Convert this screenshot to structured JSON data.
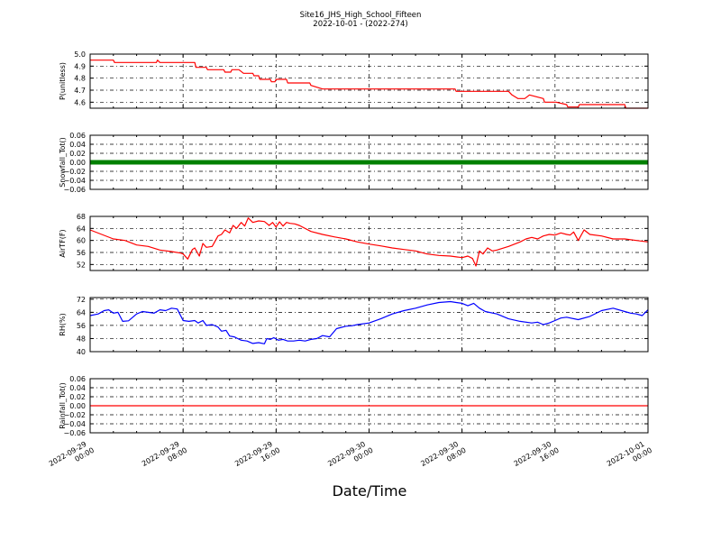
{
  "chart_data": {
    "type": "line",
    "title_line1": "Site16_JHS_High_School_Fifteen",
    "title_line2": "2022-10-01 - (2022-274)",
    "xlabel": "Date/Time",
    "x_ticks": [
      [
        "2022-09-29",
        "00:00"
      ],
      [
        "2022-09-29",
        "08:00"
      ],
      [
        "2022-09-29",
        "16:00"
      ],
      [
        "2022-09-30",
        "00:00"
      ],
      [
        "2022-09-30",
        "08:00"
      ],
      [
        "2022-09-30",
        "16:00"
      ],
      [
        "2022-10-01",
        "00:00"
      ]
    ],
    "x_range_hours": [
      0,
      48
    ],
    "grid": true,
    "panels": [
      {
        "ylabel": "P(unitless)",
        "ylim": [
          4.55,
          5.0
        ],
        "yticks": [
          "5.0",
          "4.9",
          "4.8",
          "4.7",
          "4.6"
        ],
        "ytick_values": [
          5.0,
          4.9,
          4.8,
          4.7,
          4.6
        ],
        "color": "#ff0000",
        "series": [
          {
            "x": [
              0,
              2.0,
              2.1,
              5.7,
              5.8,
              6.0,
              6.1,
              9.0,
              9.1,
              10.0,
              10.1,
              11.5,
              11.6,
              12.1,
              12.2,
              12.8,
              13.2,
              13.4,
              14.0,
              14.1,
              14.5,
              14.6,
              15.5,
              15.6,
              15.9,
              16.0,
              16.9,
              17.0,
              18.9,
              19.0,
              20.0,
              24.0,
              31.0,
              31.4,
              31.5,
              33.0,
              34.0,
              35.0,
              35.5,
              36.0,
              36.3,
              36.8,
              37.4,
              37.8,
              39.0,
              39.1,
              40.0,
              40.1,
              41.0,
              41.1,
              42.0,
              42.1,
              46.0,
              46.1,
              48.0
            ],
            "y": [
              4.95,
              4.95,
              4.93,
              4.93,
              4.95,
              4.93,
              4.93,
              4.93,
              4.89,
              4.89,
              4.87,
              4.87,
              4.85,
              4.85,
              4.87,
              4.87,
              4.84,
              4.84,
              4.84,
              4.82,
              4.82,
              4.79,
              4.79,
              4.77,
              4.77,
              4.79,
              4.79,
              4.76,
              4.76,
              4.74,
              4.71,
              4.71,
              4.71,
              4.71,
              4.69,
              4.69,
              4.69,
              4.69,
              4.69,
              4.69,
              4.66,
              4.63,
              4.63,
              4.66,
              4.63,
              4.6,
              4.6,
              4.6,
              4.58,
              4.56,
              4.56,
              4.58,
              4.58,
              4.55,
              4.55
            ]
          }
        ]
      },
      {
        "ylabel": "Snowfall_Tot()",
        "ylim": [
          -0.06,
          0.06
        ],
        "yticks": [
          "0.06",
          "0.04",
          "0.02",
          "0.00",
          "−0.02",
          "−0.04",
          "−0.06"
        ],
        "ytick_values": [
          0.06,
          0.04,
          0.02,
          0.0,
          -0.02,
          -0.04,
          -0.06
        ],
        "color": "#008000",
        "thick": true,
        "series": [
          {
            "x": [
              0,
              48
            ],
            "y": [
              0.0,
              0.0
            ]
          }
        ]
      },
      {
        "ylabel": "AirTF(F)",
        "ylim": [
          50,
          68
        ],
        "yticks": [
          "68",
          "64",
          "60",
          "56",
          "52"
        ],
        "ytick_values": [
          68,
          64,
          60,
          56,
          52
        ],
        "color": "#ff0000",
        "series": [
          {
            "x": [
              0,
              1,
              2,
              3,
              4,
              5,
              6,
              7,
              7.8,
              8.0,
              8.4,
              8.8,
              9.0,
              9.4,
              9.7,
              10.0,
              10.5,
              11.0,
              11.3,
              11.6,
              12.0,
              12.3,
              12.6,
              13.0,
              13.3,
              13.6,
              14.0,
              14.5,
              15.0,
              15.4,
              15.7,
              16.0,
              16.3,
              16.6,
              16.9,
              17.2,
              17.6,
              18.0,
              19.0,
              20.0,
              21.0,
              22.0,
              23.0,
              24.0,
              25.0,
              26.0,
              27.0,
              28.0,
              29.0,
              30.0,
              31.0,
              32.0,
              32.5,
              32.9,
              33.2,
              33.5,
              33.8,
              34.2,
              34.6,
              35.0,
              36.0,
              37.0,
              37.5,
              38.0,
              38.5,
              39.0,
              39.5,
              40.0,
              40.5,
              41.0,
              41.3,
              41.6,
              42.0,
              42.5,
              43.0,
              44.0,
              45.0,
              46.0,
              47.0,
              48.0
            ],
            "y": [
              63.5,
              62,
              60.5,
              60,
              58.5,
              58,
              56.8,
              56.3,
              55.8,
              55.5,
              53.8,
              57,
              57.5,
              54.8,
              59,
              57.7,
              58,
              61.5,
              62,
              63.5,
              62.5,
              65,
              64,
              66,
              64.8,
              67.5,
              66,
              66.5,
              66.3,
              65,
              66,
              64.5,
              66.2,
              64.8,
              66,
              65.7,
              65.5,
              65,
              63,
              62,
              61.2,
              60.5,
              59.5,
              58.8,
              58.2,
              57.5,
              57,
              56.5,
              55.5,
              55,
              54.8,
              54.3,
              54.8,
              54,
              51.5,
              56.5,
              55.5,
              57.5,
              56.5,
              56.8,
              58,
              59.5,
              60.5,
              61,
              60.5,
              61.5,
              62,
              61.8,
              62.5,
              62,
              61.8,
              62.8,
              60,
              63.5,
              62,
              61.5,
              60.5,
              60.5,
              60,
              59.5
            ]
          }
        ]
      },
      {
        "ylabel": "RH(%)",
        "ylim": [
          40,
          73
        ],
        "yticks": [
          "72",
          "64",
          "56",
          "48",
          "40"
        ],
        "ytick_values": [
          72,
          64,
          56,
          48,
          40
        ],
        "color": "#0000ff",
        "series": [
          {
            "x": [
              0,
              0.7,
              1.2,
              1.6,
              2.0,
              2.4,
              2.8,
              3.3,
              4.0,
              4.5,
              5.0,
              5.5,
              6.0,
              6.5,
              7.0,
              7.5,
              8.0,
              8.5,
              9.0,
              9.3,
              9.7,
              10.0,
              10.5,
              11.0,
              11.3,
              11.7,
              12.0,
              12.4,
              12.7,
              13.0,
              13.5,
              14.0,
              14.5,
              15.0,
              15.2,
              15.5,
              15.8,
              16.2,
              16.6,
              17.0,
              17.5,
              18.0,
              18.5,
              19.0,
              19.5,
              20.0,
              20.6,
              21.2,
              22.0,
              22.5,
              23.0,
              24.0,
              25.0,
              26.0,
              27.0,
              28.0,
              29.0,
              30.0,
              31.0,
              31.5,
              32.0,
              32.5,
              33.0,
              33.5,
              34.0,
              35.0,
              36.0,
              37.0,
              38.0,
              38.5,
              39.0,
              39.5,
              40.0,
              40.5,
              41.0,
              42.0,
              43.0,
              44.0,
              45.0,
              46.0,
              46.5,
              47.0,
              47.5,
              48.0
            ],
            "y": [
              62,
              63,
              65,
              65.5,
              63.5,
              64,
              58.5,
              58.8,
              63,
              64.5,
              64,
              63.5,
              65.5,
              65,
              66.5,
              66,
              59,
              58.5,
              59,
              57.5,
              59,
              56,
              56.5,
              55,
              52.5,
              53,
              49.5,
              49,
              48,
              47,
              46.5,
              45,
              45.5,
              44.8,
              48,
              47.5,
              48.5,
              47,
              47.5,
              46.5,
              46.5,
              47,
              46.5,
              47.5,
              48,
              49.8,
              49,
              54,
              55.5,
              55.8,
              56.5,
              57.5,
              60,
              63,
              65,
              66.5,
              68.5,
              70,
              70.5,
              70,
              69.5,
              68,
              69.5,
              66.5,
              64.5,
              63,
              60,
              58.5,
              57.5,
              58,
              56.5,
              57.5,
              59,
              60.5,
              61,
              59.5,
              61.5,
              65,
              66.5,
              64.5,
              63.5,
              63,
              62,
              65.5
            ]
          }
        ]
      },
      {
        "ylabel": "Rainfall_Tot()",
        "ylim": [
          -0.06,
          0.06
        ],
        "yticks": [
          "0.06",
          "0.04",
          "0.02",
          "0.00",
          "−0.02",
          "−0.04",
          "−0.06"
        ],
        "ytick_values": [
          0.06,
          0.04,
          0.02,
          0.0,
          -0.02,
          -0.04,
          -0.06
        ],
        "color": "#ff0000",
        "series": [
          {
            "x": [
              0,
              48
            ],
            "y": [
              0.0,
              0.0
            ]
          }
        ]
      }
    ]
  }
}
